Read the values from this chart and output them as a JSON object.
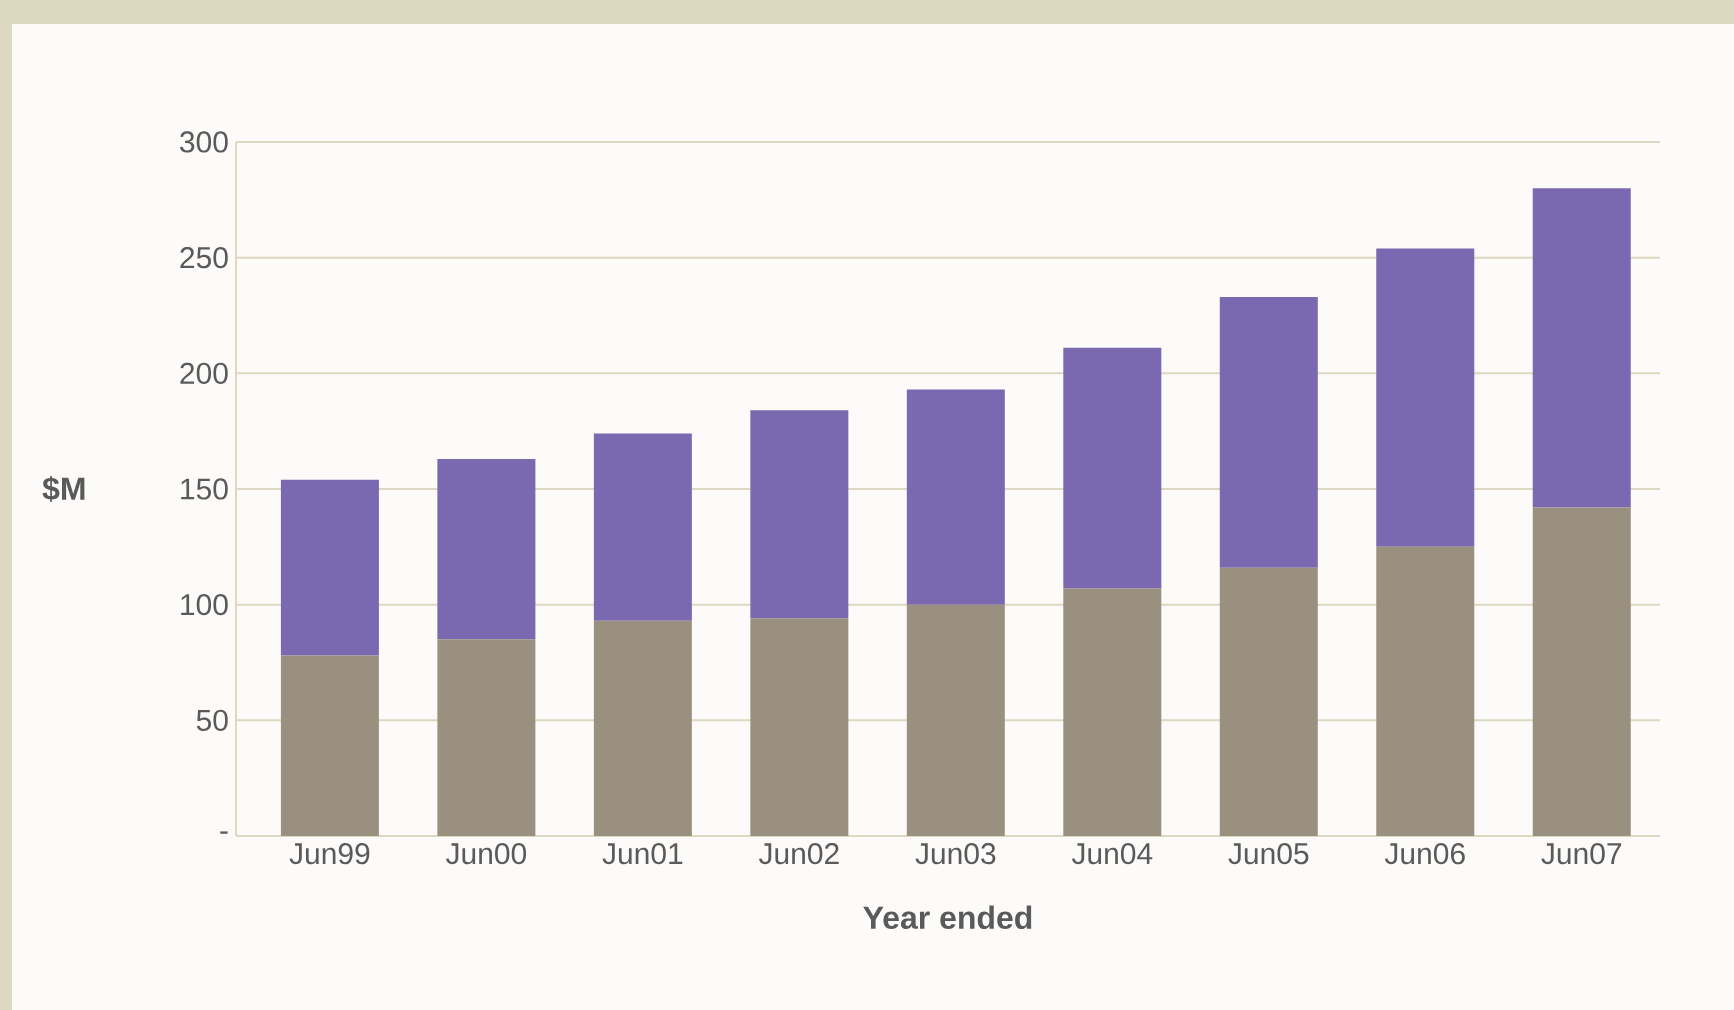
{
  "chart_data": {
    "type": "bar",
    "stacked": true,
    "xlabel": "Year ended",
    "ylabel": "$M",
    "categories": [
      "Jun99",
      "Jun00",
      "Jun01",
      "Jun02",
      "Jun03",
      "Jun04",
      "Jun05",
      "Jun06",
      "Jun07"
    ],
    "series": [
      {
        "color": "#9a907f",
        "values": [
          78,
          85,
          93,
          94,
          100,
          107,
          116,
          125,
          142
        ]
      },
      {
        "color": "#7a68b0",
        "values": [
          76,
          78,
          81,
          90,
          93,
          104,
          117,
          129,
          138
        ]
      }
    ],
    "ylim": [
      0,
      300
    ],
    "yticks": [
      {
        "value": 0,
        "label": "-"
      },
      50,
      100,
      150,
      200,
      250,
      300
    ],
    "grid": "y"
  }
}
